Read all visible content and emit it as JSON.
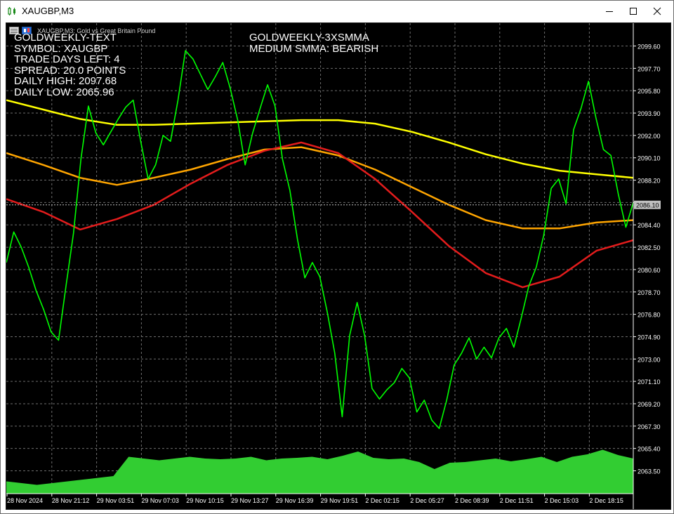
{
  "window": {
    "title": "XAUGBP,M3"
  },
  "chart_header": {
    "symbol_info": "XAUGBP,M3:  Gold vs Great Britain Pound"
  },
  "panel_left": {
    "lines": [
      "GOLDWEEKLY-TEXT",
      "SYMBOL: XAUGBP",
      "TRADE DAYS LEFT: 4",
      "SPREAD: 20.0 POINTS",
      "DAILY HIGH: 2097.68",
      "DAILY LOW: 2065.96"
    ]
  },
  "panel_center": {
    "lines": [
      "GOLDWEEKLY-3XSMMA",
      "MEDIUM SMMA: BEARISH"
    ]
  },
  "colors": {
    "price": "#00ff00",
    "volume": "#32cd32",
    "slow_smma": "#ffff00",
    "medium_smma": "#ffa500",
    "fast_smma": "#e31c1c",
    "grid": "#6e6e6e",
    "background": "#000000",
    "current_price_label_bg": "#c0c0c0"
  },
  "chart_data": {
    "type": "line",
    "title": "",
    "y_axis_ticks": [
      "2099.60",
      "2097.70",
      "2095.80",
      "2093.90",
      "2092.00",
      "2090.10",
      "2088.20",
      "2086.30",
      "2084.40",
      "2082.50",
      "2080.60",
      "2078.70",
      "2076.80",
      "2074.90",
      "2073.00",
      "2071.10",
      "2069.20",
      "2067.30",
      "2065.40",
      "2063.50"
    ],
    "y_axis_tick_values": [
      2099.6,
      2097.7,
      2095.8,
      2093.9,
      2092.0,
      2090.1,
      2088.2,
      2086.3,
      2084.4,
      2082.5,
      2080.6,
      2078.7,
      2076.8,
      2074.9,
      2073.0,
      2071.1,
      2069.2,
      2067.3,
      2065.4,
      2063.5
    ],
    "ylim": [
      2063.5,
      2099.6
    ],
    "current_price": "2086.10",
    "current_price_value": 2086.1,
    "x_axis_ticks": [
      "28 Nov 2024",
      "28 Nov 21:12",
      "29 Nov 03:51",
      "29 Nov 07:03",
      "29 Nov 10:15",
      "29 Nov 13:27",
      "29 Nov 16:39",
      "29 Nov 19:51",
      "2 Dec 02:15",
      "2 Dec 05:27",
      "2 Dec 08:39",
      "2 Dec 11:51",
      "2 Dec 15:03",
      "2 Dec 18:15"
    ],
    "series": [
      {
        "kind": "price",
        "values": [
          2081.2,
          2083.8,
          2082.5,
          2080.8,
          2078.8,
          2077.2,
          2075.3,
          2074.6,
          2079.2,
          2083.7,
          2090.0,
          2094.5,
          2092.2,
          2091.2,
          2092.3,
          2093.4,
          2094.4,
          2095.0,
          2091.5,
          2088.3,
          2089.5,
          2092.0,
          2091.5,
          2095.0,
          2099.2,
          2098.5,
          2097.2,
          2095.9,
          2097.0,
          2098.2,
          2096.0,
          2093.3,
          2089.5,
          2092.2,
          2094.3,
          2096.3,
          2094.5,
          2090.0,
          2087.3,
          2083.2,
          2079.9,
          2081.2,
          2080.0,
          2077.0,
          2073.5,
          2068.1,
          2075.0,
          2077.8,
          2075.0,
          2070.5,
          2069.6,
          2070.4,
          2071.0,
          2072.2,
          2071.4,
          2068.5,
          2069.5,
          2067.8,
          2067.1,
          2069.5,
          2072.5,
          2073.5,
          2074.8,
          2073.0,
          2074.0,
          2073.1,
          2074.8,
          2075.6,
          2074.0,
          2076.5,
          2079.2,
          2080.8,
          2083.5,
          2087.5,
          2088.3,
          2086.2,
          2092.5,
          2094.3,
          2096.6,
          2093.5,
          2090.8,
          2090.3,
          2087.0,
          2084.2,
          2086.3
        ]
      },
      {
        "kind": "slow_smma",
        "values": [
          2095.0,
          2094.2,
          2093.4,
          2092.9,
          2092.9,
          2093.0,
          2093.1,
          2093.2,
          2093.3,
          2093.3,
          2093.0,
          2092.3,
          2091.4,
          2090.4,
          2089.6,
          2089.0,
          2088.7,
          2088.4
        ]
      },
      {
        "kind": "medium_smma",
        "values": [
          2090.5,
          2089.5,
          2088.4,
          2087.8,
          2088.4,
          2089.1,
          2090.0,
          2090.8,
          2091.0,
          2090.3,
          2089.1,
          2087.6,
          2086.1,
          2084.8,
          2084.1,
          2084.1,
          2084.6,
          2084.8
        ]
      },
      {
        "kind": "fast_smma",
        "values": [
          2086.6,
          2085.5,
          2084.0,
          2084.9,
          2086.1,
          2087.9,
          2089.5,
          2090.7,
          2091.4,
          2090.5,
          2088.3,
          2085.5,
          2082.6,
          2080.3,
          2079.1,
          2080.0,
          2082.2,
          2083.1
        ]
      },
      {
        "kind": "volume",
        "values": [
          0.35,
          0.3,
          0.25,
          0.3,
          0.35,
          0.4,
          0.45,
          0.5,
          1.05,
          1.0,
          0.95,
          1.0,
          1.05,
          1.0,
          0.98,
          1.0,
          1.05,
          0.95,
          1.0,
          1.02,
          1.05,
          0.98,
          1.08,
          1.2,
          1.02,
          0.98,
          1.0,
          0.9,
          0.7,
          0.88,
          0.9,
          0.95,
          1.0,
          0.92,
          0.98,
          1.05,
          0.9,
          1.05,
          1.12,
          1.25,
          1.1,
          1.0
        ]
      }
    ]
  }
}
